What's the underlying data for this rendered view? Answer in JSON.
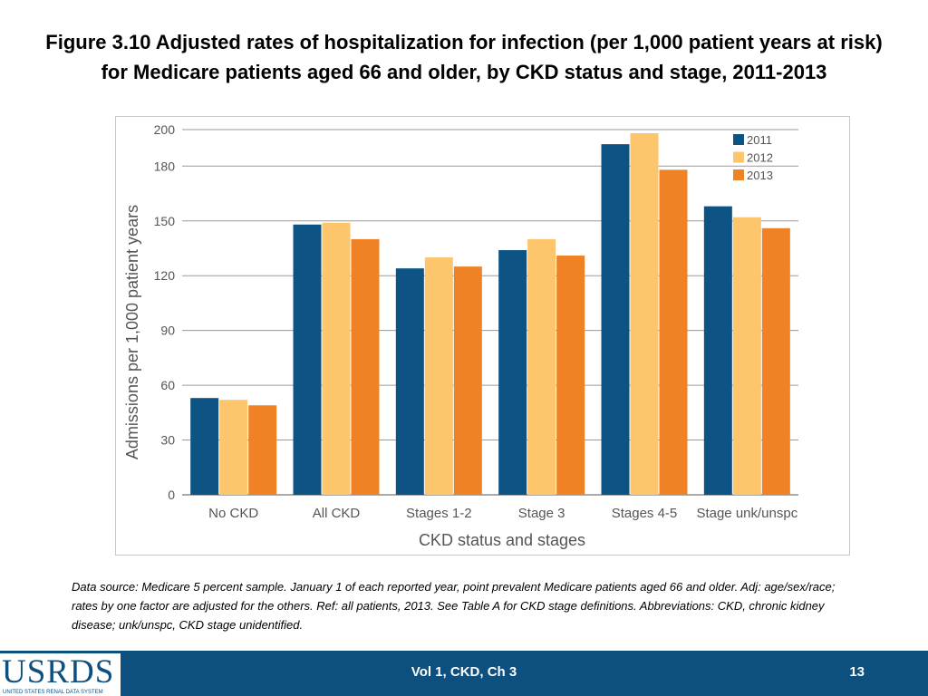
{
  "title": {
    "line1": "Figure 3.10  Adjusted rates of hospitalization for infection (per 1,000 patient years at risk)",
    "line2": "for Medicare patients aged 66 and older, by CKD status and stage, 2011-2013"
  },
  "chart_data": {
    "type": "bar",
    "categories": [
      "No CKD",
      "All CKD",
      "Stages 1-2",
      "Stage 3",
      "Stages 4-5",
      "Stage unk/unspc"
    ],
    "series": [
      {
        "name": "2011",
        "color": "#0d5485",
        "values": [
          53,
          148,
          124,
          134,
          192,
          158
        ]
      },
      {
        "name": "2012",
        "color": "#fdc56c",
        "values": [
          52,
          149,
          130,
          140,
          198,
          152
        ]
      },
      {
        "name": "2013",
        "color": "#ee8225",
        "values": [
          49,
          140,
          125,
          131,
          178,
          146
        ]
      }
    ],
    "xlabel": "CKD status and stages",
    "ylabel": "Admissions per 1,000 patient years",
    "ylim": [
      0,
      200
    ],
    "yticks": [
      0,
      30,
      60,
      90,
      120,
      150,
      180,
      200
    ],
    "grid": true,
    "legend_position": "top-right"
  },
  "footnote": "Data source: Medicare 5 percent sample. January 1 of each reported year, point prevalent Medicare patients aged 66 and older. Adj: age/sex/race; rates by one factor are adjusted for the others. Ref: all patients, 2013. See Table A for CKD stage definitions. Abbreviations: CKD, chronic kidney disease; unk/unspc, CKD stage unidentified.",
  "footer": {
    "logo_text": "USRDS",
    "logo_subtext": "UNITED STATES RENAL DATA SYSTEM",
    "center_text": "Vol 1, CKD, Ch 3",
    "page_number": "13"
  }
}
